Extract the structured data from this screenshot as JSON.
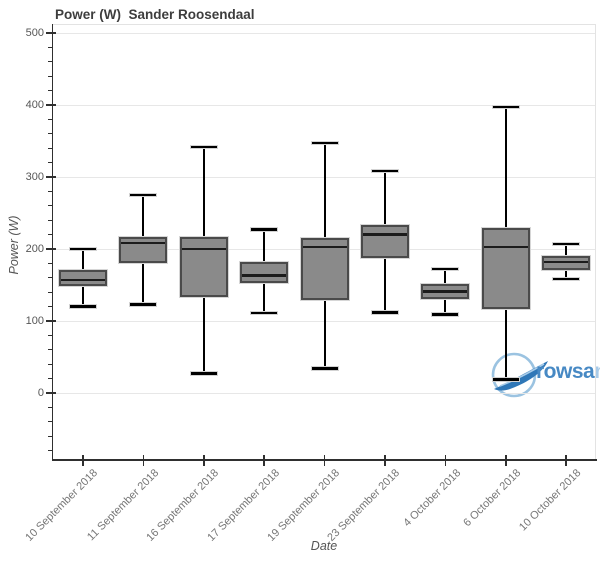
{
  "title": "Power (W)  Sander Roosendaal",
  "watermark": {
    "main_text": "rowsa",
    "faded_text": "n",
    "main_color": "#4789c4",
    "faded_color": "#a9cbe8",
    "ring_color": "#8ab8dc",
    "swoosh_color": "#2f77b7"
  },
  "colors": {
    "box_fill": "#8a8a8a",
    "box_border": "#4a4a4a",
    "median": "#1c1c1c",
    "whisker": "#000000",
    "grid": "#e7e7e7",
    "axis": "#2f2f2f",
    "tick_label": "#565656",
    "title": "#3d3d3d"
  },
  "chart_data": {
    "type": "box",
    "title": "Power (W)  Sander Roosendaal",
    "xlabel": "Date",
    "ylabel": "Power (W)",
    "ylim": [
      -93,
      512
    ],
    "yticks": [
      0,
      100,
      200,
      300,
      400,
      500
    ],
    "minor_tick_step": 20,
    "grid": true,
    "legend": false,
    "categories": [
      "10 September 2018",
      "11 September 2018",
      "16 September 2018",
      "17 September 2018",
      "19 September 2018",
      "23 September 2018",
      "4 October 2018",
      "6 October 2018",
      "10 October 2018"
    ],
    "series": [
      {
        "name": "Power (W)",
        "boxes": [
          {
            "low": 120,
            "q1": 149,
            "median": 157,
            "q3": 171,
            "high": 200
          },
          {
            "low": 123,
            "q1": 181,
            "median": 208,
            "q3": 217,
            "high": 275
          },
          {
            "low": 27,
            "q1": 133,
            "median": 200,
            "q3": 216,
            "high": 342
          },
          {
            "low": 111,
            "q1": 153,
            "median": 163,
            "q3": 182,
            "high": 227
          },
          {
            "low": 34,
            "q1": 129,
            "median": 203,
            "q3": 215,
            "high": 347
          },
          {
            "low": 112,
            "q1": 187,
            "median": 220,
            "q3": 234,
            "high": 308
          },
          {
            "low": 109,
            "q1": 131,
            "median": 141,
            "q3": 152,
            "high": 172
          },
          {
            "low": 19,
            "q1": 117,
            "median": 203,
            "q3": 229,
            "high": 397
          },
          {
            "low": 158,
            "q1": 171,
            "median": 182,
            "q3": 190,
            "high": 207
          }
        ]
      }
    ]
  }
}
